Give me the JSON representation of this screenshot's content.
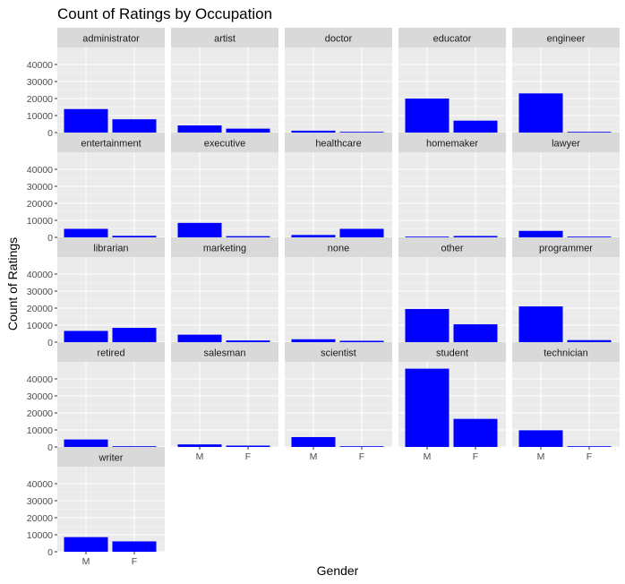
{
  "colors": {
    "bar": "#0000ff",
    "panel": "#ebebeb",
    "grid_major": "#ffffff",
    "strip": "#d9d9d9"
  },
  "chart_data": {
    "type": "bar",
    "title": "Count of Ratings by Occupation",
    "xlabel": "Gender",
    "ylabel": "Count of Ratings",
    "categories": [
      "M",
      "F"
    ],
    "y_ticks": [
      0,
      10000,
      20000,
      30000,
      40000
    ],
    "ylim": [
      0,
      50000
    ],
    "grid": true,
    "facets": [
      {
        "name": "administrator",
        "values": [
          13800,
          7800
        ]
      },
      {
        "name": "artist",
        "values": [
          4200,
          2300
        ]
      },
      {
        "name": "doctor",
        "values": [
          1100,
          0
        ]
      },
      {
        "name": "educator",
        "values": [
          20000,
          7000
        ]
      },
      {
        "name": "engineer",
        "values": [
          23000,
          200
        ]
      },
      {
        "name": "entertainment",
        "values": [
          5000,
          900
        ]
      },
      {
        "name": "executive",
        "values": [
          8500,
          700
        ]
      },
      {
        "name": "healthcare",
        "values": [
          1400,
          5000
        ]
      },
      {
        "name": "homemaker",
        "values": [
          300,
          800
        ]
      },
      {
        "name": "lawyer",
        "values": [
          3800,
          400
        ]
      },
      {
        "name": "librarian",
        "values": [
          6600,
          8400
        ]
      },
      {
        "name": "marketing",
        "values": [
          4400,
          1000
        ]
      },
      {
        "name": "none",
        "values": [
          1700,
          800
        ]
      },
      {
        "name": "other",
        "values": [
          19500,
          10500
        ]
      },
      {
        "name": "programmer",
        "values": [
          21000,
          1200
        ]
      },
      {
        "name": "retired",
        "values": [
          4400,
          300
        ]
      },
      {
        "name": "salesman",
        "values": [
          1500,
          800
        ]
      },
      {
        "name": "scientist",
        "values": [
          5800,
          300
        ]
      },
      {
        "name": "student",
        "values": [
          46000,
          16500
        ]
      },
      {
        "name": "technician",
        "values": [
          9800,
          300
        ]
      },
      {
        "name": "writer",
        "values": [
          8600,
          6100
        ]
      }
    ]
  }
}
